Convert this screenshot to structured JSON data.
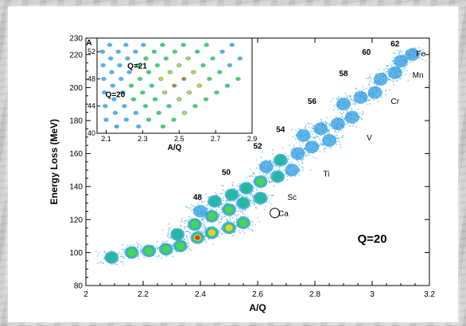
{
  "chart_data": [
    {
      "type": "scatter",
      "title": "",
      "xlabel": "A/Q",
      "ylabel": "Energy Loss (MeV)",
      "xlim": [
        2.0,
        3.2
      ],
      "ylim": [
        80,
        230
      ],
      "x_ticks": [
        "2",
        "2.2",
        "2.4",
        "2.6",
        "2.8",
        "3",
        "3.2"
      ],
      "y_ticks": [
        "80",
        "100",
        "120",
        "140",
        "160",
        "180",
        "200",
        "220",
        "230"
      ],
      "colormap": [
        "#2f9be0",
        "#1fb99a",
        "#4cd15a",
        "#e3cf2a",
        "#e43a1a"
      ],
      "annotation": "Q=20",
      "element_labels": [
        {
          "text": "Ca",
          "x": 2.69,
          "y": 122
        },
        {
          "text": "Sc",
          "x": 2.72,
          "y": 132
        },
        {
          "text": "Ti",
          "x": 2.84,
          "y": 146
        },
        {
          "text": "V",
          "x": 2.99,
          "y": 168
        },
        {
          "text": "Cr",
          "x": 3.08,
          "y": 190
        },
        {
          "text": "Mn",
          "x": 3.16,
          "y": 206
        },
        {
          "text": "Fe",
          "x": 3.17,
          "y": 219
        }
      ],
      "mass_labels": [
        {
          "text": "48",
          "x": 2.39,
          "y": 132
        },
        {
          "text": "50",
          "x": 2.49,
          "y": 147
        },
        {
          "text": "52",
          "x": 2.6,
          "y": 163
        },
        {
          "text": "54",
          "x": 2.68,
          "y": 173
        },
        {
          "text": "56",
          "x": 2.79,
          "y": 190
        },
        {
          "text": "58",
          "x": 2.9,
          "y": 207
        },
        {
          "text": "60",
          "x": 2.98,
          "y": 220
        },
        {
          "text": "62",
          "x": 3.08,
          "y": 225
        }
      ],
      "circled_point": {
        "x": 2.66,
        "y": 124
      },
      "blobs": [
        {
          "x": 2.09,
          "y": 97,
          "level": 0.5
        },
        {
          "x": 2.16,
          "y": 100,
          "level": 0.62
        },
        {
          "x": 2.22,
          "y": 101,
          "level": 0.58
        },
        {
          "x": 2.28,
          "y": 102,
          "level": 0.55
        },
        {
          "x": 2.33,
          "y": 104,
          "level": 0.58
        },
        {
          "x": 2.39,
          "y": 109,
          "level": 1.0
        },
        {
          "x": 2.44,
          "y": 112,
          "level": 0.85
        },
        {
          "x": 2.5,
          "y": 115,
          "level": 0.8
        },
        {
          "x": 2.55,
          "y": 118,
          "level": 0.55
        },
        {
          "x": 2.32,
          "y": 111,
          "level": 0.5
        },
        {
          "x": 2.38,
          "y": 117,
          "level": 0.55
        },
        {
          "x": 2.44,
          "y": 122,
          "level": 0.6
        },
        {
          "x": 2.5,
          "y": 126,
          "level": 0.55
        },
        {
          "x": 2.55,
          "y": 130,
          "level": 0.5
        },
        {
          "x": 2.61,
          "y": 133,
          "level": 0.45
        },
        {
          "x": 2.4,
          "y": 125,
          "level": 0.4
        },
        {
          "x": 2.45,
          "y": 131,
          "level": 0.45
        },
        {
          "x": 2.51,
          "y": 135,
          "level": 0.5
        },
        {
          "x": 2.56,
          "y": 139,
          "level": 0.48
        },
        {
          "x": 2.61,
          "y": 143,
          "level": 0.52
        },
        {
          "x": 2.67,
          "y": 146,
          "level": 0.45
        },
        {
          "x": 2.72,
          "y": 150,
          "level": 0.4
        },
        {
          "x": 2.63,
          "y": 152,
          "level": 0.38
        },
        {
          "x": 2.68,
          "y": 156,
          "level": 0.42
        },
        {
          "x": 2.74,
          "y": 160,
          "level": 0.4
        },
        {
          "x": 2.79,
          "y": 164,
          "level": 0.38
        },
        {
          "x": 2.85,
          "y": 168,
          "level": 0.35
        },
        {
          "x": 2.76,
          "y": 171,
          "level": 0.33
        },
        {
          "x": 2.82,
          "y": 175,
          "level": 0.36
        },
        {
          "x": 2.88,
          "y": 178,
          "level": 0.33
        },
        {
          "x": 2.93,
          "y": 182,
          "level": 0.3
        },
        {
          "x": 2.9,
          "y": 190,
          "level": 0.28
        },
        {
          "x": 2.96,
          "y": 194,
          "level": 0.3
        },
        {
          "x": 3.01,
          "y": 197,
          "level": 0.27
        },
        {
          "x": 3.03,
          "y": 205,
          "level": 0.24
        },
        {
          "x": 3.08,
          "y": 209,
          "level": 0.22
        },
        {
          "x": 3.1,
          "y": 216,
          "level": 0.2
        },
        {
          "x": 3.14,
          "y": 220,
          "level": 0.18
        }
      ]
    },
    {
      "type": "scatter",
      "title": "",
      "xlabel": "A/Q",
      "ylabel": "A",
      "xlim": [
        2.05,
        2.9
      ],
      "ylim": [
        40,
        54
      ],
      "x_ticks": [
        "2.1",
        "2.3",
        "2.5",
        "2.7",
        "2.9"
      ],
      "y_ticks": [
        "40",
        "44",
        "48",
        "52"
      ],
      "annotations": [
        "Q=21",
        "Q=20"
      ]
    }
  ]
}
